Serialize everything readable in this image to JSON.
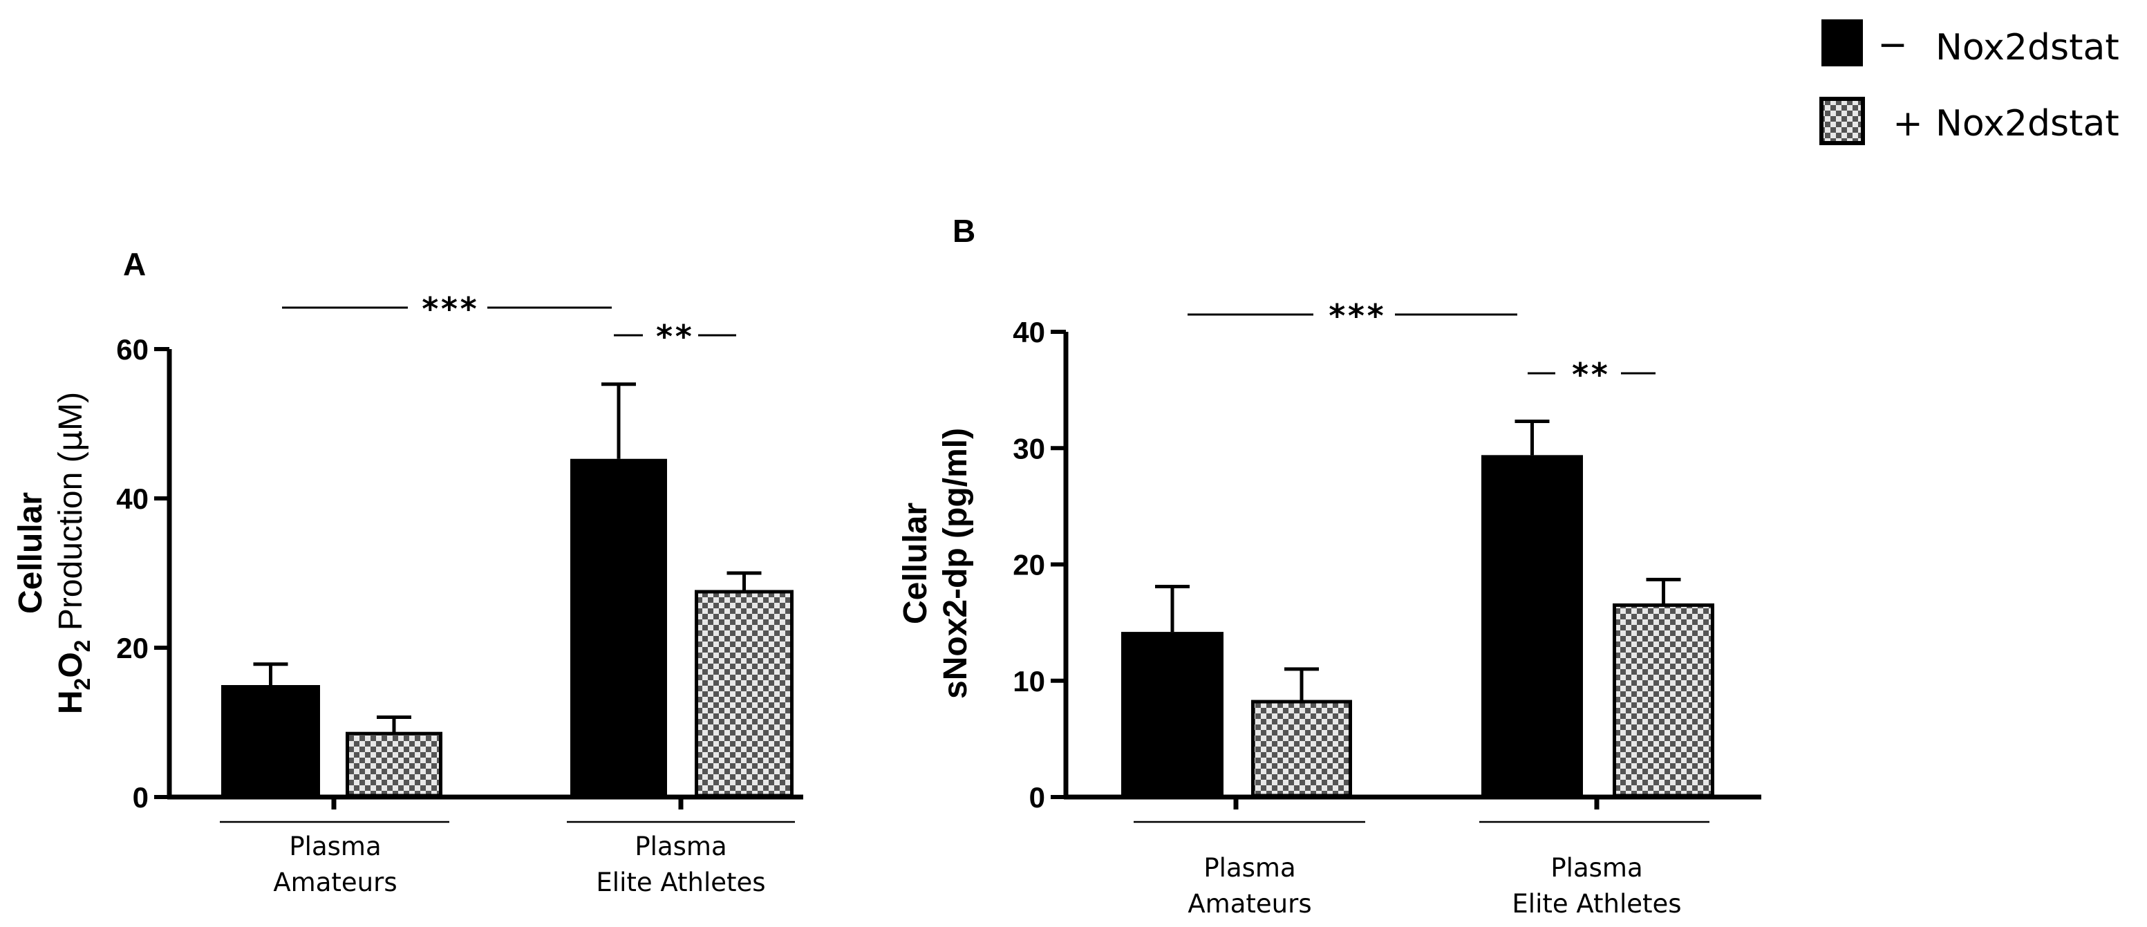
{
  "legend": {
    "items": [
      {
        "sign": "−",
        "label": "Nox2dstat",
        "pattern": "solid"
      },
      {
        "sign": "+",
        "label": "Nox2dstat",
        "pattern": "checker"
      }
    ]
  },
  "chart_data": [
    {
      "panel": "A",
      "type": "bar",
      "ylabel_line1": "Cellular",
      "ylabel_line2": "H2O2 Production (μM)",
      "ylabel_parts": {
        "h": "H",
        "sub1": "2",
        "o": "O",
        "sub2": "2",
        "rest": " Production (",
        "mu": "μ",
        "unit": "M)"
      },
      "ylim": [
        0,
        60
      ],
      "yticks": [
        0,
        20,
        40,
        60
      ],
      "yticklabels": [
        "0",
        "20",
        "40",
        "60"
      ],
      "groups": [
        {
          "line1": "Plasma",
          "line2": "Amateurs"
        },
        {
          "line1": "Plasma",
          "line2": "Elite Athletes"
        }
      ],
      "series": [
        {
          "name": "− Nox2dstat",
          "values": [
            15,
            45.3
          ],
          "errors": [
            2.8,
            10
          ]
        },
        {
          "name": "+ Nox2dstat",
          "values": [
            8.5,
            27.5
          ],
          "errors": [
            2.2,
            2.5
          ]
        }
      ],
      "annotations": [
        {
          "text": "***",
          "type": "between-groups"
        },
        {
          "text": "**",
          "type": "within-group",
          "group": 1
        }
      ]
    },
    {
      "panel": "B",
      "type": "bar",
      "ylabel_line1": "Cellular",
      "ylabel_line2": "sNox2-dp (pg/ml)",
      "ylim": [
        0,
        40
      ],
      "yticks": [
        0,
        10,
        20,
        30,
        40
      ],
      "yticklabels": [
        "0",
        "10",
        "20",
        "30",
        "40"
      ],
      "groups": [
        {
          "line1": "Plasma",
          "line2": "Amateurs"
        },
        {
          "line1": "Plasma",
          "line2": "Elite Athletes"
        }
      ],
      "series": [
        {
          "name": "− Nox2dstat",
          "values": [
            14.2,
            29.4
          ],
          "errors": [
            3.9,
            2.9
          ]
        },
        {
          "name": "+ Nox2dstat",
          "values": [
            8.2,
            16.5
          ],
          "errors": [
            2.8,
            2.2
          ]
        }
      ],
      "annotations": [
        {
          "text": "***",
          "type": "between-groups"
        },
        {
          "text": "**",
          "type": "within-group",
          "group": 1
        }
      ]
    }
  ]
}
